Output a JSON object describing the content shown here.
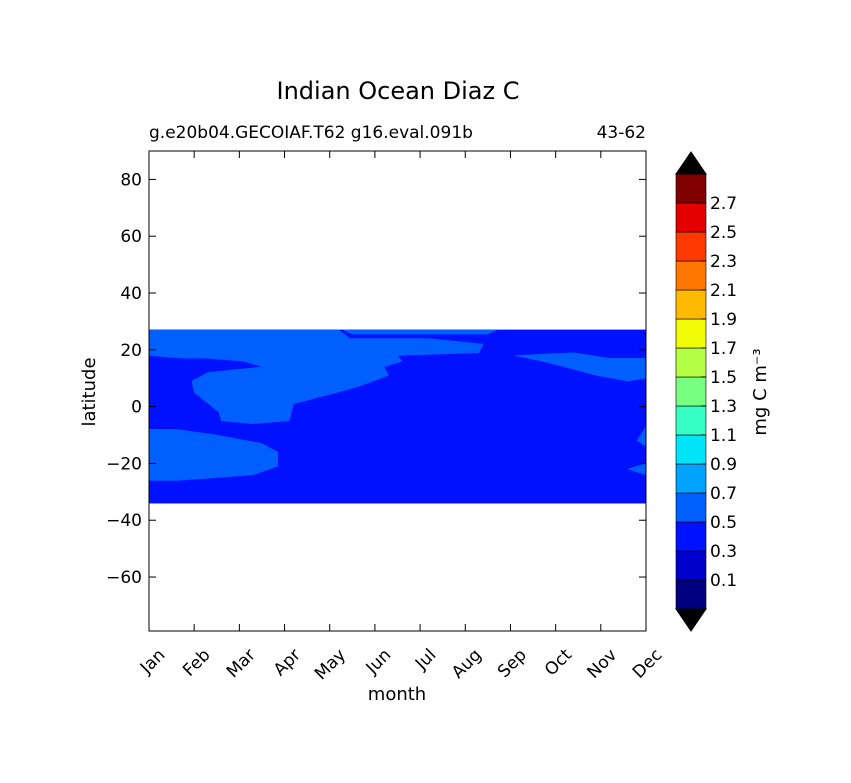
{
  "chart_data": {
    "type": "heatmap",
    "title": "Indian Ocean Diaz C",
    "subtitle_left": "g.e20b04.GECOIAF.T62 g16.eval.091b",
    "subtitle_right": "43-62",
    "xlabel": "month",
    "ylabel": "latitude",
    "x_categories": [
      "Jan",
      "Feb",
      "Mar",
      "Apr",
      "May",
      "Jun",
      "Jul",
      "Aug",
      "Sep",
      "Oct",
      "Nov",
      "Dec"
    ],
    "xlim": [
      0,
      11
    ],
    "ylim": [
      -79,
      90
    ],
    "y_ticks": [
      80,
      60,
      40,
      20,
      0,
      -20,
      -40,
      -60
    ],
    "y_tick_labels": [
      "80",
      "60",
      "40",
      "20",
      "0",
      "−20",
      "−40",
      "−60"
    ],
    "data_lat_range": [
      -34,
      27
    ],
    "colorbar": {
      "label": "mg C m⁻³",
      "levels": [
        0,
        0.1,
        0.2,
        0.3,
        0.4,
        0.5,
        0.6,
        0.7,
        0.8,
        0.9,
        1.0,
        1.1,
        1.2,
        1.3,
        1.4,
        1.5,
        1.6,
        1.7,
        1.8,
        1.9,
        2.0,
        2.1,
        2.2,
        2.3,
        2.4,
        2.5,
        2.6,
        2.7,
        2.8,
        2.9,
        3.0
      ],
      "tick_labels": [
        "0.1",
        "0.3",
        "0.5",
        "0.7",
        "0.9",
        "1.1",
        "1.3",
        "1.5",
        "1.7",
        "1.9",
        "2.1",
        "2.3",
        "2.5",
        "2.7"
      ],
      "colors": [
        "#000080",
        "#0000cd",
        "#0011ff",
        "#0060ff",
        "#00a4ff",
        "#00e4f8",
        "#35ffc2",
        "#76ff81",
        "#b4ff43",
        "#f1fc06",
        "#ffba00",
        "#ff7700",
        "#ff3a00",
        "#e50000",
        "#800000"
      ],
      "extend": "both",
      "under_color": "#000000",
      "over_color": "#000000"
    },
    "regions": [
      {
        "name": "base",
        "value": 0.4,
        "polygon": [
          [
            0,
            27
          ],
          [
            11,
            27
          ],
          [
            11,
            -34
          ],
          [
            0,
            -34
          ]
        ]
      },
      {
        "name": "south-west-band",
        "value": 0.6,
        "polygon": [
          [
            0,
            -8
          ],
          [
            0.6,
            -8
          ],
          [
            1.5,
            -10
          ],
          [
            2.5,
            -13
          ],
          [
            2.85,
            -16
          ],
          [
            2.85,
            -21
          ],
          [
            2.3,
            -24
          ],
          [
            1.5,
            -25
          ],
          [
            0.6,
            -26
          ],
          [
            0,
            -26
          ]
        ]
      },
      {
        "name": "north-band",
        "value": 0.6,
        "polygon": [
          [
            0,
            27
          ],
          [
            4.2,
            27
          ],
          [
            4.45,
            24
          ],
          [
            6.2,
            24
          ],
          [
            7.4,
            22
          ],
          [
            7.3,
            19
          ],
          [
            5.5,
            18
          ],
          [
            5.6,
            16
          ],
          [
            5.2,
            14
          ],
          [
            5.3,
            11
          ],
          [
            4.8,
            8
          ],
          [
            4.4,
            6
          ],
          [
            3.2,
            1
          ],
          [
            3.1,
            -5
          ],
          [
            2.3,
            -6
          ],
          [
            1.6,
            -5
          ],
          [
            1.55,
            -2
          ],
          [
            1.0,
            5
          ],
          [
            0.95,
            9
          ],
          [
            1.3,
            12
          ],
          [
            2.5,
            14
          ],
          [
            2.1,
            16
          ],
          [
            1.3,
            17
          ],
          [
            0.8,
            17
          ],
          [
            0,
            18
          ]
        ]
      },
      {
        "name": "east-blob",
        "value": 0.6,
        "polygon": [
          [
            8.1,
            18
          ],
          [
            9.4,
            19
          ],
          [
            10.2,
            17
          ],
          [
            11,
            17
          ],
          [
            11,
            10
          ],
          [
            10.6,
            9
          ],
          [
            9.9,
            11
          ],
          [
            9.2,
            14
          ],
          [
            8.7,
            16
          ]
        ]
      },
      {
        "name": "east-edge-mid",
        "value": 0.6,
        "polygon": [
          [
            11,
            -7
          ],
          [
            10.8,
            -12
          ],
          [
            11,
            -14
          ]
        ]
      },
      {
        "name": "east-edge-south",
        "value": 0.6,
        "polygon": [
          [
            11,
            -20
          ],
          [
            10.6,
            -22
          ],
          [
            11,
            -24
          ]
        ]
      },
      {
        "name": "may-blob",
        "value": 0.7,
        "polygon": [
          [
            2.8,
            5
          ],
          [
            3.3,
            10
          ],
          [
            4.0,
            16
          ],
          [
            4.3,
            18
          ],
          [
            5.2,
            18
          ],
          [
            5.4,
            16
          ],
          [
            4.5,
            12
          ],
          [
            4.2,
            7
          ],
          [
            3.8,
            5
          ],
          [
            3.2,
            4
          ]
        ]
      },
      {
        "name": "jul-strip",
        "value": 0.7,
        "polygon": [
          [
            4.3,
            27
          ],
          [
            7.7,
            27
          ],
          [
            7.5,
            25.5
          ],
          [
            4.5,
            25.5
          ]
        ]
      }
    ]
  }
}
